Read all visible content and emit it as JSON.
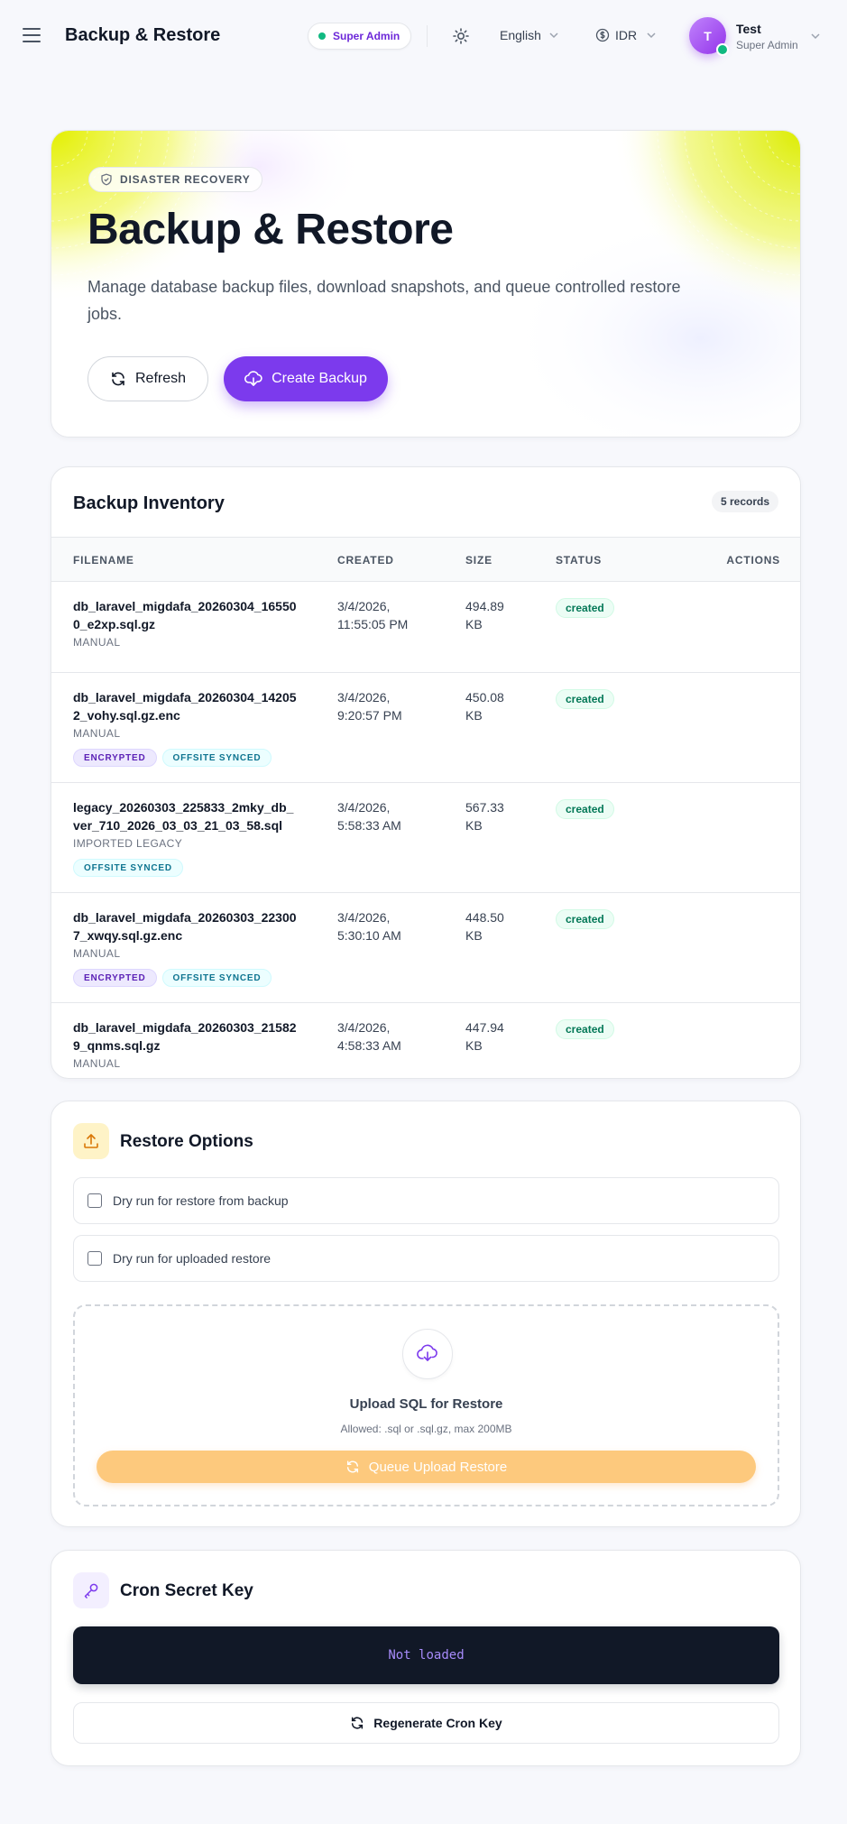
{
  "header": {
    "title": "Backup & Restore",
    "role_badge": "Super Admin",
    "language": "English",
    "currency": "IDR",
    "user": {
      "initial": "T",
      "name": "Test",
      "role": "Super Admin"
    }
  },
  "hero": {
    "badge": "DISASTER RECOVERY",
    "title": "Backup & Restore",
    "description": "Manage database backup files, download snapshots, and queue controlled restore jobs.",
    "refresh_label": "Refresh",
    "create_label": "Create Backup"
  },
  "inventory": {
    "title": "Backup Inventory",
    "records": "5 records",
    "columns": {
      "filename": "FILENAME",
      "created": "CREATED",
      "size": "SIZE",
      "status": "STATUS",
      "actions": "ACTIONS"
    },
    "rows": [
      {
        "filename": "db_laravel_migdafa_20260304_165500_e2xp.sql.gz",
        "source": "MANUAL",
        "created": "3/4/2026, 11:55:05 PM",
        "size": "494.89 KB",
        "status": "created",
        "tags": []
      },
      {
        "filename": "db_laravel_migdafa_20260304_142052_vohy.sql.gz.enc",
        "source": "MANUAL",
        "created": "3/4/2026, 9:20:57 PM",
        "size": "450.08 KB",
        "status": "created",
        "tags": [
          "ENCRYPTED",
          "OFFSITE SYNCED"
        ]
      },
      {
        "filename": "legacy_20260303_225833_2mky_db_ver_710_2026_03_03_21_03_58.sql",
        "source": "IMPORTED LEGACY",
        "created": "3/4/2026, 5:58:33 AM",
        "size": "567.33 KB",
        "status": "created",
        "tags": [
          "OFFSITE SYNCED"
        ]
      },
      {
        "filename": "db_laravel_migdafa_20260303_223007_xwqy.sql.gz.enc",
        "source": "MANUAL",
        "created": "3/4/2026, 5:30:10 AM",
        "size": "448.50 KB",
        "status": "created",
        "tags": [
          "ENCRYPTED",
          "OFFSITE SYNCED"
        ]
      },
      {
        "filename": "db_laravel_migdafa_20260303_215829_qnms.sql.gz",
        "source": "MANUAL",
        "created": "3/4/2026, 4:58:33 AM",
        "size": "447.94 KB",
        "status": "created",
        "tags": []
      }
    ]
  },
  "restore": {
    "title": "Restore Options",
    "option_backup": "Dry run for restore from backup",
    "option_upload": "Dry run for uploaded restore",
    "upload_title": "Upload SQL for Restore",
    "upload_hint": "Allowed: .sql or .sql.gz, max 200MB",
    "queue_label": "Queue Upload Restore"
  },
  "cron": {
    "title": "Cron Secret Key",
    "key_value": "Not loaded",
    "regen_label": "Regenerate Cron Key"
  },
  "icons": {
    "menu": "menu-icon",
    "theme": "sun-icon",
    "language_chevron": "chevron-down-icon",
    "currency": "dollar-circle-icon",
    "refresh": "refresh-icon",
    "create": "cloud-download-icon",
    "upload": "upload-icon",
    "cron": "key-icon",
    "shield": "shield-check-icon"
  },
  "colors": {
    "accent": "#7c3aed",
    "success": "#10b981",
    "warning": "#fdc97d",
    "dark": "#111827"
  }
}
